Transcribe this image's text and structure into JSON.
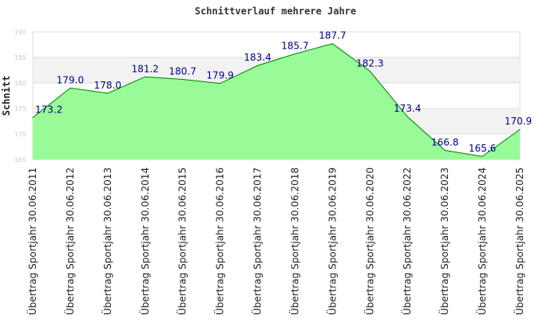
{
  "chart_data": {
    "type": "area",
    "title": "Schnittverlauf mehrere Jahre",
    "xlabel": "",
    "ylabel": "Schnitt",
    "ylim": [
      165,
      190
    ],
    "yticks": [
      165,
      170,
      175,
      180,
      185,
      190
    ],
    "categories": [
      "Übertrag Sportjahr 30.06.2011",
      "Übertrag Sportjahr 30.06.2012",
      "Übertrag Sportjahr 30.06.2013",
      "Übertrag Sportjahr 30.06.2014",
      "Übertrag Sportjahr 30.06.2015",
      "Übertrag Sportjahr 30.06.2016",
      "Übertrag Sportjahr 30.06.2017",
      "Übertrag Sportjahr 30.06.2018",
      "Übertrag Sportjahr 30.06.2019",
      "Übertrag Sportjahr 30.06.2020",
      "Übertrag Sportjahr 30.06.2022",
      "Übertrag Sportjahr 30.06.2023",
      "Übertrag Sportjahr 30.06.2024",
      "Übertrag Sportjahr 30.06.2025"
    ],
    "values": [
      173.2,
      179.0,
      178.0,
      181.2,
      180.7,
      179.9,
      183.4,
      185.7,
      187.7,
      182.3,
      173.4,
      166.8,
      165.6,
      170.9
    ],
    "labels": [
      "173.2",
      "179.0",
      "178.0",
      "181.2",
      "180.7",
      "179.9",
      "183.4",
      "185.7",
      "187.7",
      "182.3",
      "173.4",
      "166.8",
      "165.6",
      "170.9"
    ],
    "grid": true,
    "colors": {
      "fill": "#98fb98",
      "line": "#008000",
      "label": "#00008b",
      "band": "#f2f2f2"
    }
  }
}
